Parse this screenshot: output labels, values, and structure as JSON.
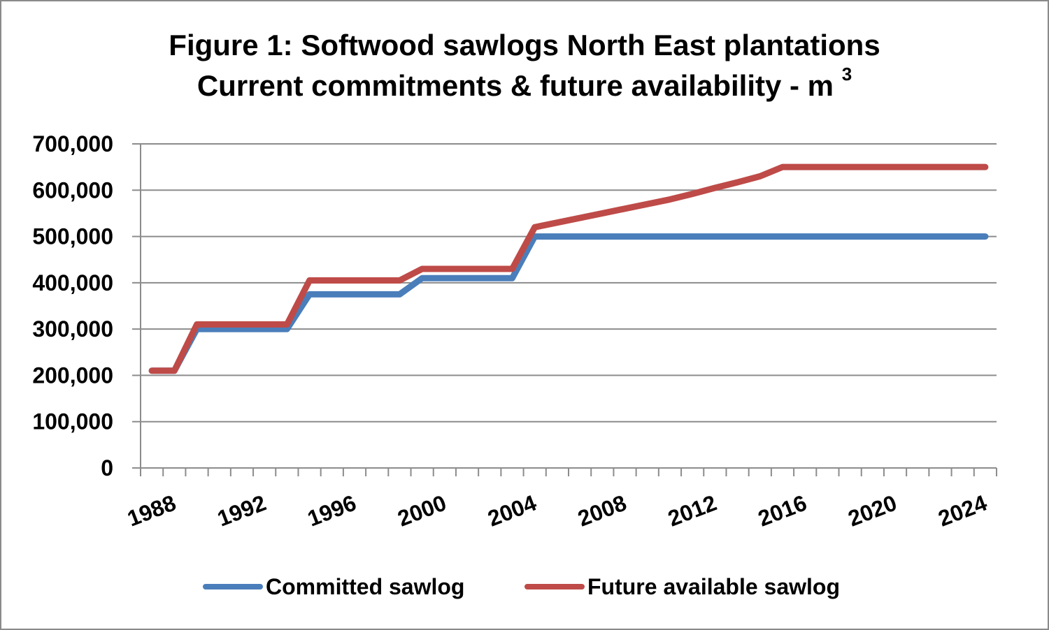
{
  "chart_data": {
    "type": "line",
    "title_line1": "Figure 1:  Softwood sawlogs North East plantations",
    "title_line2": "Current commitments & future availability - m",
    "title_superscript": "3",
    "x": [
      1988,
      1989,
      1990,
      1991,
      1992,
      1993,
      1994,
      1995,
      1996,
      1997,
      1998,
      1999,
      2000,
      2001,
      2002,
      2003,
      2004,
      2005,
      2006,
      2007,
      2008,
      2009,
      2010,
      2011,
      2012,
      2013,
      2014,
      2015,
      2016,
      2017,
      2018,
      2019,
      2020,
      2021,
      2022,
      2023,
      2024,
      2025
    ],
    "x_tick_labels": [
      "1988",
      "1992",
      "1996",
      "2000",
      "2004",
      "2008",
      "2012",
      "2016",
      "2020",
      "2024"
    ],
    "ylim": [
      0,
      700000
    ],
    "y_tick_labels": [
      "0",
      "100,000",
      "200,000",
      "300,000",
      "400,000",
      "500,000",
      "600,000",
      "700,000"
    ],
    "grid": true,
    "legend_position": "bottom",
    "series": [
      {
        "name": "Committed sawlog",
        "color": "#4a7ebb",
        "values": [
          210000,
          210000,
          300000,
          300000,
          300000,
          300000,
          300000,
          375000,
          375000,
          375000,
          375000,
          375000,
          410000,
          410000,
          410000,
          410000,
          410000,
          500000,
          500000,
          500000,
          500000,
          500000,
          500000,
          500000,
          500000,
          500000,
          500000,
          500000,
          500000,
          500000,
          500000,
          500000,
          500000,
          500000,
          500000,
          500000,
          500000,
          500000
        ]
      },
      {
        "name": "Future available sawlog",
        "color": "#be4b48",
        "values": [
          210000,
          210000,
          310000,
          310000,
          310000,
          310000,
          310000,
          405000,
          405000,
          405000,
          405000,
          405000,
          430000,
          430000,
          430000,
          430000,
          430000,
          520000,
          530000,
          540000,
          550000,
          560000,
          570000,
          580000,
          592000,
          605000,
          617000,
          630000,
          650000,
          650000,
          650000,
          650000,
          650000,
          650000,
          650000,
          650000,
          650000,
          650000
        ]
      }
    ]
  }
}
